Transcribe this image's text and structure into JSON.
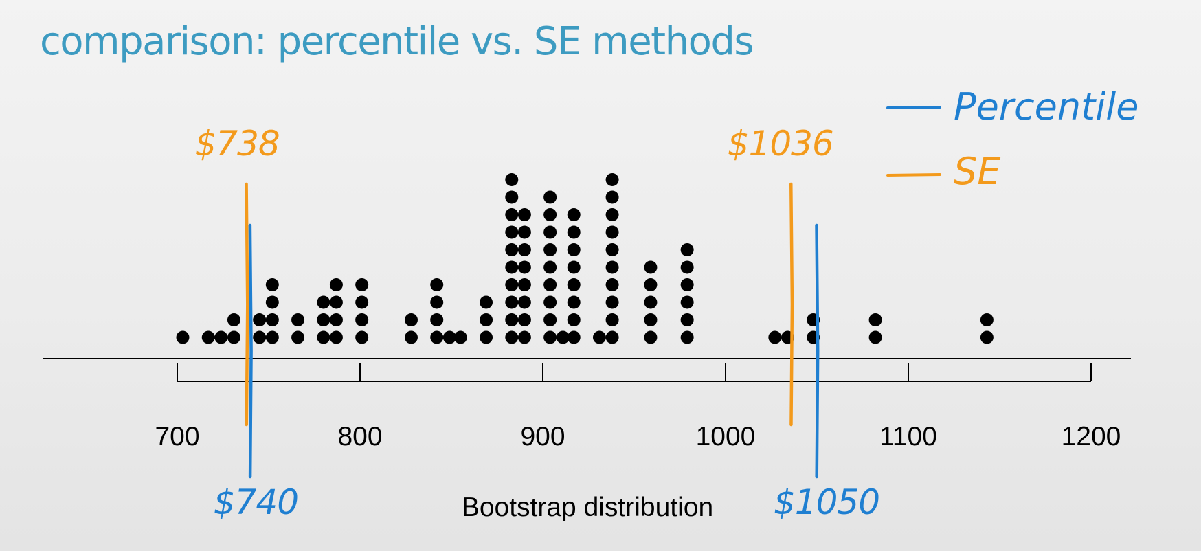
{
  "slide": {
    "title": "comparison: percentile vs. SE methods"
  },
  "legend": {
    "percentile_label": "Percentile",
    "se_label": "SE",
    "percentile_color": "#1f7fd1",
    "se_color": "#f39a1c"
  },
  "chart_data": {
    "type": "dotplot",
    "title": "",
    "xlabel": "Bootstrap distribution",
    "ylabel": "",
    "xlim": [
      700,
      1200
    ],
    "xticks": [
      700,
      800,
      900,
      1000,
      1100,
      1200
    ],
    "legend_position": "top-right",
    "grid": false,
    "dot_color": "#000000",
    "stacks": [
      {
        "x": 703,
        "count": 1
      },
      {
        "x": 717,
        "count": 1
      },
      {
        "x": 724,
        "count": 1
      },
      {
        "x": 731,
        "count": 2
      },
      {
        "x": 745,
        "count": 2
      },
      {
        "x": 752,
        "count": 4
      },
      {
        "x": 766,
        "count": 2
      },
      {
        "x": 780,
        "count": 3
      },
      {
        "x": 787,
        "count": 4
      },
      {
        "x": 801,
        "count": 4
      },
      {
        "x": 828,
        "count": 2
      },
      {
        "x": 842,
        "count": 4
      },
      {
        "x": 849,
        "count": 1
      },
      {
        "x": 855,
        "count": 1
      },
      {
        "x": 869,
        "count": 3
      },
      {
        "x": 883,
        "count": 10
      },
      {
        "x": 890,
        "count": 8
      },
      {
        "x": 904,
        "count": 9
      },
      {
        "x": 911,
        "count": 1
      },
      {
        "x": 917,
        "count": 8
      },
      {
        "x": 931,
        "count": 1
      },
      {
        "x": 938,
        "count": 10
      },
      {
        "x": 959,
        "count": 5
      },
      {
        "x": 979,
        "count": 6
      },
      {
        "x": 1027,
        "count": 1
      },
      {
        "x": 1034,
        "count": 1
      },
      {
        "x": 1048,
        "count": 2
      },
      {
        "x": 1082,
        "count": 2
      },
      {
        "x": 1143,
        "count": 2
      }
    ],
    "intervals": [
      {
        "method": "SE",
        "lower": 738,
        "upper": 1036,
        "lower_label": "$738",
        "upper_label": "$1036",
        "color": "#f39a1c"
      },
      {
        "method": "Percentile",
        "lower": 740,
        "upper": 1050,
        "lower_label": "$740",
        "upper_label": "$1050",
        "color": "#1f7fd1"
      }
    ]
  }
}
